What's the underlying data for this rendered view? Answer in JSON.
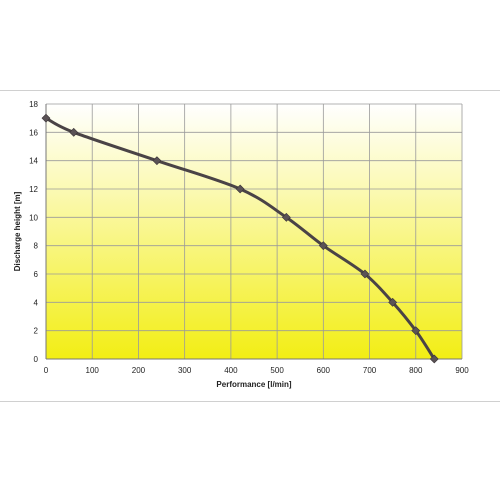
{
  "chart_data": {
    "type": "line",
    "xlabel": "Performance [l/min]",
    "ylabel": "Discharge height [m]",
    "xlim": [
      0,
      900
    ],
    "ylim": [
      0,
      18
    ],
    "xticks": [
      0,
      100,
      200,
      300,
      400,
      500,
      600,
      700,
      800,
      900
    ],
    "yticks": [
      0,
      2,
      4,
      6,
      8,
      10,
      12,
      14,
      16,
      18
    ],
    "grid": true,
    "background": "yellow-to-white gradient",
    "colors": {
      "line": "#4a4346",
      "marker": "#5a5256",
      "grid": "#9a9a9a",
      "fill_top": "#ffffff",
      "fill_bottom": "#f2ee14"
    },
    "series": [
      {
        "x": [
          0,
          60,
          240,
          420,
          520,
          600,
          690,
          750,
          800,
          840
        ],
        "y": [
          17,
          16,
          14,
          12,
          10,
          8,
          6,
          4,
          2,
          0
        ]
      }
    ]
  }
}
